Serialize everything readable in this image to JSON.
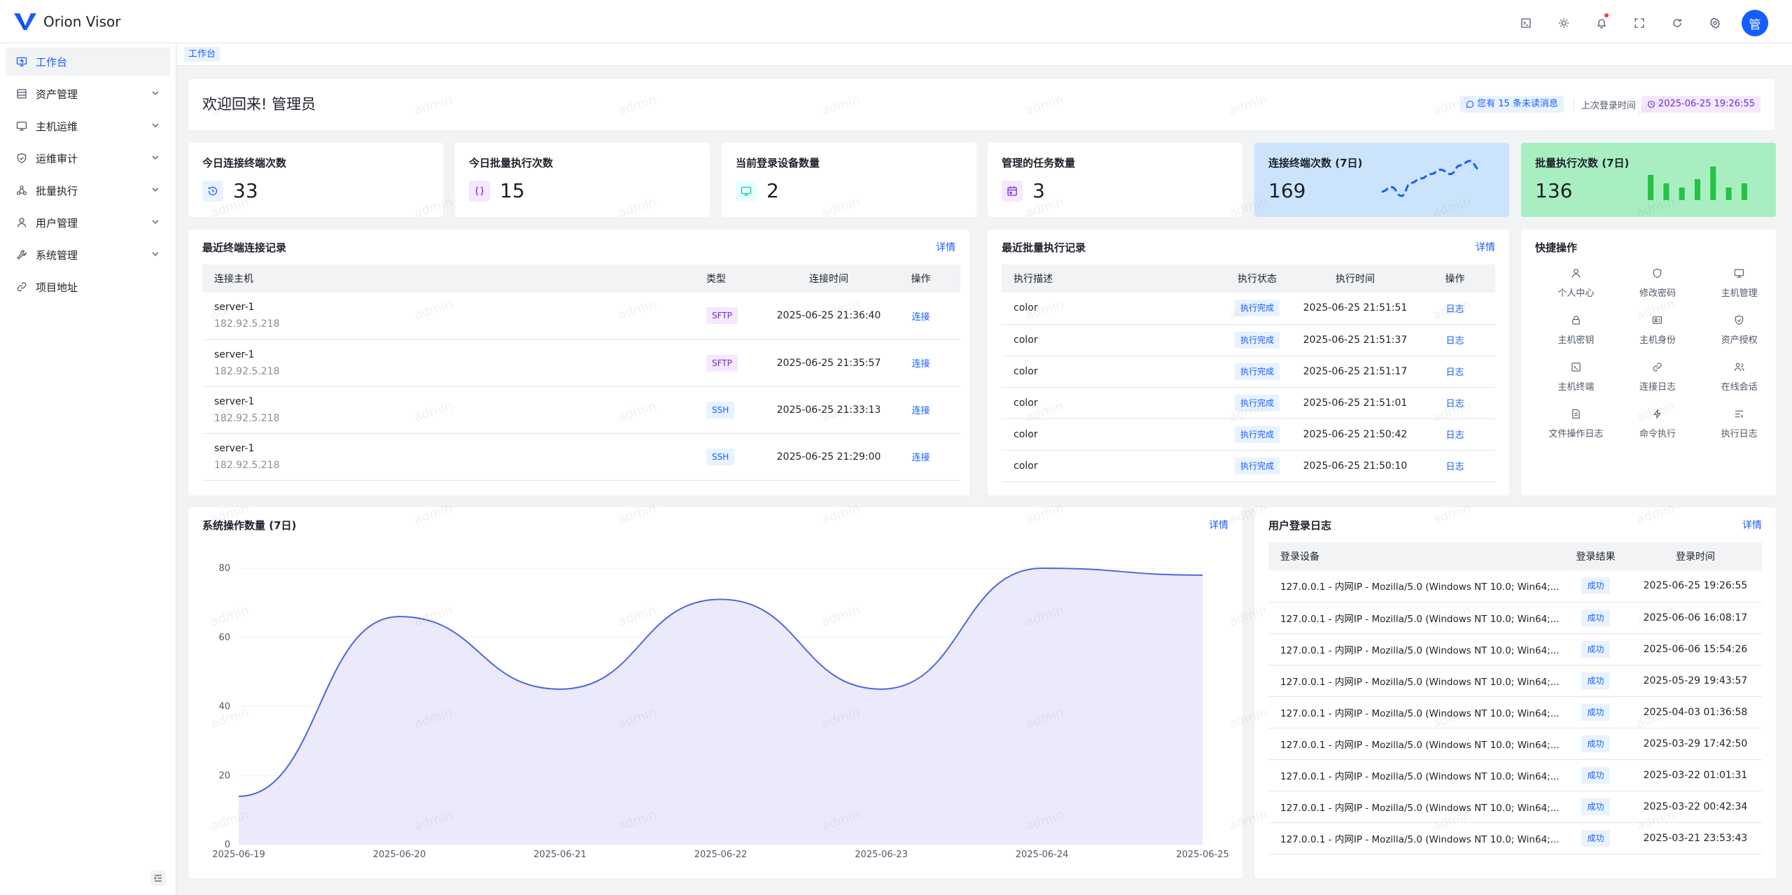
{
  "app": {
    "title": "Orion Visor"
  },
  "topbar": {
    "icons": [
      "terminal-icon",
      "theme-icon",
      "bell-icon",
      "fullscreen-icon",
      "refresh-icon",
      "settings-icon"
    ],
    "avatar_text": "管"
  },
  "sidebar": {
    "items": [
      {
        "label": "工作台",
        "icon": "monitor-icon",
        "active": true,
        "expandable": false
      },
      {
        "label": "资产管理",
        "icon": "table-icon",
        "active": false,
        "expandable": true
      },
      {
        "label": "主机运维",
        "icon": "desktop-icon",
        "active": false,
        "expandable": true
      },
      {
        "label": "运维审计",
        "icon": "shield-icon",
        "active": false,
        "expandable": true
      },
      {
        "label": "批量执行",
        "icon": "nodes-icon",
        "active": false,
        "expandable": true
      },
      {
        "label": "用户管理",
        "icon": "user-icon",
        "active": false,
        "expandable": true
      },
      {
        "label": "系统管理",
        "icon": "wrench-icon",
        "active": false,
        "expandable": true
      },
      {
        "label": "项目地址",
        "icon": "link-icon",
        "active": false,
        "expandable": false
      }
    ]
  },
  "tagbar": {
    "active_tag": "工作台"
  },
  "welcome": {
    "title": "欢迎回来! 管理员",
    "unread_msg": "您有 15 条未读消息",
    "last_login_label": "上次登录时间",
    "last_login_time": "2025-06-25 19:26:55"
  },
  "stats": [
    {
      "label": "今日连接终端次数",
      "value": "33",
      "icon": "history-icon",
      "icon_bg": "#e8f3ff",
      "icon_color": "#165dff"
    },
    {
      "label": "今日批量执行次数",
      "value": "15",
      "icon": "braces-icon",
      "icon_bg": "#f5e8ff",
      "icon_color": "#722ed1"
    },
    {
      "label": "当前登录设备数量",
      "value": "2",
      "icon": "desktop-icon",
      "icon_bg": "#e8fffb",
      "icon_color": "#0fc6c2"
    },
    {
      "label": "管理的任务数量",
      "value": "3",
      "icon": "calendar-icon",
      "icon_bg": "#f5e8ff",
      "icon_color": "#722ed1"
    }
  ],
  "trend_cards": [
    {
      "label": "连接终端次数 (7日)",
      "value": "169",
      "bg": "#cce4fb",
      "color": "#165dff",
      "points": [
        2,
        3,
        1,
        4,
        5,
        6,
        7,
        6,
        8,
        9,
        7
      ]
    },
    {
      "label": "批量执行次数 (7日)",
      "value": "136",
      "bg": "#a8eec1",
      "color": "#23c343",
      "bars": [
        6,
        4,
        3,
        5,
        8,
        3,
        4
      ]
    }
  ],
  "recent_terminal": {
    "title": "最近终端连接记录",
    "more": "详情",
    "headers": [
      "连接主机",
      "类型",
      "连接时间",
      "操作"
    ],
    "rows": [
      {
        "host": "server-1",
        "ip": "182.92.5.218",
        "type": "SFTP",
        "time": "2025-06-25 21:36:40",
        "action": "连接"
      },
      {
        "host": "server-1",
        "ip": "182.92.5.218",
        "type": "SFTP",
        "time": "2025-06-25 21:35:57",
        "action": "连接"
      },
      {
        "host": "server-1",
        "ip": "182.92.5.218",
        "type": "SSH",
        "time": "2025-06-25 21:33:13",
        "action": "连接"
      },
      {
        "host": "server-1",
        "ip": "182.92.5.218",
        "type": "SSH",
        "time": "2025-06-25 21:29:00",
        "action": "连接"
      }
    ]
  },
  "recent_batch": {
    "title": "最近批量执行记录",
    "more": "详情",
    "headers": [
      "执行描述",
      "执行状态",
      "执行时间",
      "操作"
    ],
    "rows": [
      {
        "desc": "color",
        "status": "执行完成",
        "time": "2025-06-25 21:51:51",
        "action": "日志"
      },
      {
        "desc": "color",
        "status": "执行完成",
        "time": "2025-06-25 21:51:37",
        "action": "日志"
      },
      {
        "desc": "color",
        "status": "执行完成",
        "time": "2025-06-25 21:51:17",
        "action": "日志"
      },
      {
        "desc": "color",
        "status": "执行完成",
        "time": "2025-06-25 21:51:01",
        "action": "日志"
      },
      {
        "desc": "color",
        "status": "执行完成",
        "time": "2025-06-25 21:50:42",
        "action": "日志"
      },
      {
        "desc": "color",
        "status": "执行完成",
        "time": "2025-06-25 21:50:10",
        "action": "日志"
      }
    ]
  },
  "quick_actions": {
    "title": "快捷操作",
    "items": [
      {
        "label": "个人中心",
        "icon": "user-icon"
      },
      {
        "label": "修改密码",
        "icon": "shield-icon"
      },
      {
        "label": "主机管理",
        "icon": "desktop-icon"
      },
      {
        "label": "主机密钥",
        "icon": "lock-icon"
      },
      {
        "label": "主机身份",
        "icon": "id-card-icon"
      },
      {
        "label": "资产授权",
        "icon": "shield-check-icon"
      },
      {
        "label": "主机终端",
        "icon": "terminal-icon"
      },
      {
        "label": "连接日志",
        "icon": "link-icon"
      },
      {
        "label": "在线会话",
        "icon": "users-icon"
      },
      {
        "label": "文件操作日志",
        "icon": "file-icon"
      },
      {
        "label": "命令执行",
        "icon": "thunder-icon"
      },
      {
        "label": "执行日志",
        "icon": "list-icon"
      }
    ]
  },
  "ops_chart_card": {
    "title": "系统操作数量 (7日)",
    "more": "详情"
  },
  "chart_data": {
    "type": "area",
    "title": "系统操作数量 (7日)",
    "categories": [
      "2025-06-19",
      "2025-06-20",
      "2025-06-21",
      "2025-06-22",
      "2025-06-23",
      "2025-06-24",
      "2025-06-25"
    ],
    "values": [
      14,
      66,
      45,
      71,
      45,
      80,
      78
    ],
    "ylim": [
      0,
      80
    ],
    "yticks": [
      0,
      20,
      40,
      60,
      80
    ],
    "xlabel": "",
    "ylabel": "",
    "color": "#4d67e0",
    "fill": "#eaeafb",
    "grid": true
  },
  "login_log": {
    "title": "用户登录日志",
    "more": "详情",
    "headers": [
      "登录设备",
      "登录结果",
      "登录时间"
    ],
    "rows": [
      {
        "device": "127.0.0.1 - 内网IP - Mozilla/5.0 (Windows NT 10.0; Win64;...",
        "result": "成功",
        "time": "2025-06-25 19:26:55"
      },
      {
        "device": "127.0.0.1 - 内网IP - Mozilla/5.0 (Windows NT 10.0; Win64;...",
        "result": "成功",
        "time": "2025-06-06 16:08:17"
      },
      {
        "device": "127.0.0.1 - 内网IP - Mozilla/5.0 (Windows NT 10.0; Win64;...",
        "result": "成功",
        "time": "2025-06-06 15:54:26"
      },
      {
        "device": "127.0.0.1 - 内网IP - Mozilla/5.0 (Windows NT 10.0; Win64;...",
        "result": "成功",
        "time": "2025-05-29 19:43:57"
      },
      {
        "device": "127.0.0.1 - 内网IP - Mozilla/5.0 (Windows NT 10.0; Win64;...",
        "result": "成功",
        "time": "2025-04-03 01:36:58"
      },
      {
        "device": "127.0.0.1 - 内网IP - Mozilla/5.0 (Windows NT 10.0; Win64;...",
        "result": "成功",
        "time": "2025-03-29 17:42:50"
      },
      {
        "device": "127.0.0.1 - 内网IP - Mozilla/5.0 (Windows NT 10.0; Win64;...",
        "result": "成功",
        "time": "2025-03-22 01:01:31"
      },
      {
        "device": "127.0.0.1 - 内网IP - Mozilla/5.0 (Windows NT 10.0; Win64;...",
        "result": "成功",
        "time": "2025-03-22 00:42:34"
      },
      {
        "device": "127.0.0.1 - 内网IP - Mozilla/5.0 (Windows NT 10.0; Win64;...",
        "result": "成功",
        "time": "2025-03-21 23:53:43"
      }
    ]
  },
  "watermark": {
    "text": "admin"
  }
}
